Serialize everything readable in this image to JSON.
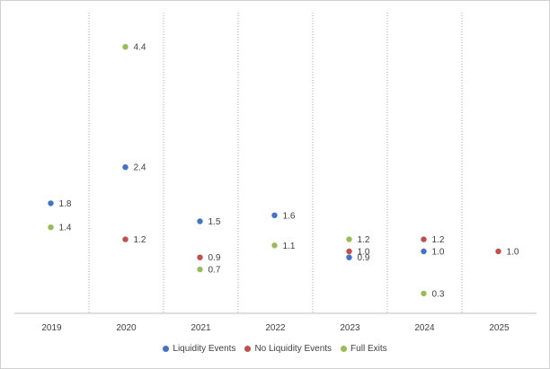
{
  "chart_data": {
    "type": "scatter",
    "categories": [
      "2019",
      "2020",
      "2021",
      "2022",
      "2023",
      "2024",
      "2025"
    ],
    "ylim": [
      0,
      5
    ],
    "grid": "vertical dotted category separators",
    "legend_position": "bottom",
    "series": [
      {
        "name": "Liquidity Events",
        "color": "#4472c4",
        "values": [
          1.8,
          2.4,
          1.5,
          1.6,
          0.9,
          1.0,
          null
        ],
        "labels": [
          "1.8",
          "2.4",
          "1.5",
          "1.6",
          "0.9",
          "1.0",
          ""
        ]
      },
      {
        "name": "No Liquidity Events",
        "color": "#c0504d",
        "values": [
          null,
          1.2,
          0.9,
          null,
          1.0,
          1.2,
          1.0
        ],
        "labels": [
          "",
          "1.2",
          "0.9",
          "",
          "1.0",
          "1.2",
          "1.0"
        ]
      },
      {
        "name": "Full Exits",
        "color": "#9bbb59",
        "values": [
          1.4,
          4.4,
          0.7,
          1.1,
          1.2,
          0.3,
          null
        ],
        "labels": [
          "1.4",
          "4.4",
          "0.7",
          "1.1",
          "1.2",
          "0.3",
          ""
        ]
      }
    ]
  }
}
